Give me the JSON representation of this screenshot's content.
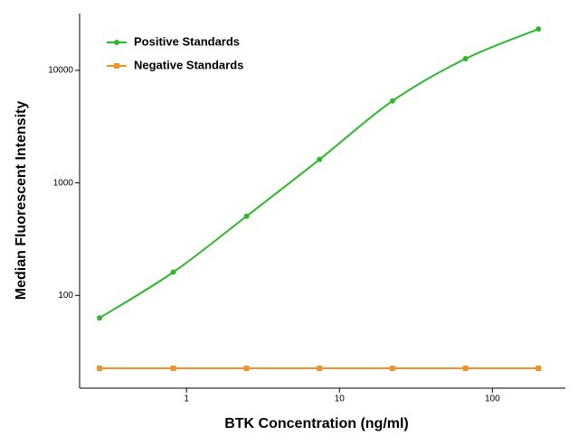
{
  "chart_data": {
    "type": "line",
    "x_label": "BTK Concentration (ng/ml)",
    "y_label": "Median Fluorescent Intensity",
    "x": [
      0.27,
      0.82,
      2.47,
      7.41,
      22.2,
      66.7,
      200
    ],
    "series": [
      {
        "name": "Positive Standards",
        "color": "#2db82d",
        "marker": "circle",
        "values": [
          63,
          161,
          506,
          1615,
          5350,
          12700,
          23300
        ]
      },
      {
        "name": "Negative Standards",
        "color": "#f0922a",
        "marker": "square",
        "values": [
          22.5,
          22.5,
          22.5,
          22.5,
          22.5,
          22.5,
          22.5
        ]
      }
    ],
    "xscale": "log",
    "yscale": "log",
    "xlim": [
      0.2,
      300
    ],
    "xticks": [
      1,
      10,
      100
    ],
    "ylim": [
      15,
      32000
    ],
    "yticks": [
      100,
      1000,
      10000
    ],
    "grid": false,
    "legend": "upper left"
  }
}
